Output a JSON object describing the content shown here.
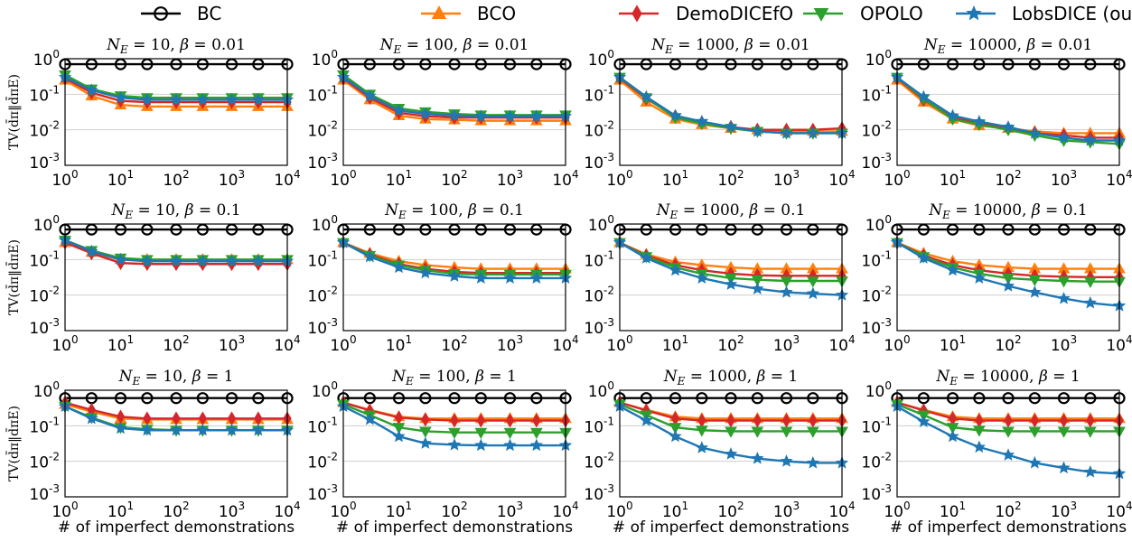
{
  "legend": {
    "position": "top-center",
    "entries": [
      {
        "name": "BC",
        "color": "#000000",
        "marker": "circle"
      },
      {
        "name": "BCO",
        "color": "#ff7f0e",
        "marker": "triangle-up"
      },
      {
        "name": "DemoDICEfO",
        "color": "#d62728",
        "marker": "diamond"
      },
      {
        "name": "OPOLO",
        "color": "#2ca02c",
        "marker": "triangle-down"
      },
      {
        "name": "LobsDICE (ours)",
        "color": "#1f77b4",
        "marker": "star"
      }
    ]
  },
  "axis": {
    "xlabel": "# of imperfect demonstrations",
    "ylabel": "TV(d̄π‖d̄πE)",
    "scale": "log",
    "x_ticks": [
      "10^0",
      "10^1",
      "10^2",
      "10^3",
      "10^4"
    ],
    "y_ticks": [
      "10^0",
      "10^-1",
      "10^-2",
      "10^-3"
    ],
    "xlim": [
      1,
      10000
    ],
    "ylim": [
      0.001,
      1
    ],
    "grid": "horizontal"
  },
  "chart_data": [
    {
      "type": "line",
      "title": "N_E = 10, β = 0.01",
      "x": [
        1,
        3,
        10,
        30,
        100,
        300,
        1000,
        3000,
        10000
      ],
      "series": [
        {
          "name": "BC",
          "values": [
            0.7,
            0.7,
            0.7,
            0.7,
            0.7,
            0.7,
            0.7,
            0.7,
            0.7
          ]
        },
        {
          "name": "BCO",
          "values": [
            0.25,
            0.09,
            0.05,
            0.045,
            0.045,
            0.045,
            0.045,
            0.045,
            0.045
          ]
        },
        {
          "name": "DemoDICEfO",
          "values": [
            0.28,
            0.11,
            0.065,
            0.06,
            0.06,
            0.06,
            0.06,
            0.06,
            0.06
          ]
        },
        {
          "name": "OPOLO",
          "values": [
            0.35,
            0.14,
            0.09,
            0.08,
            0.08,
            0.08,
            0.08,
            0.08,
            0.08
          ]
        },
        {
          "name": "LobsDICE (ours)",
          "values": [
            0.3,
            0.13,
            0.08,
            0.07,
            0.07,
            0.07,
            0.07,
            0.07,
            0.07
          ]
        }
      ]
    },
    {
      "type": "line",
      "title": "N_E = 100, β = 0.01",
      "x": [
        1,
        3,
        10,
        30,
        100,
        300,
        1000,
        3000,
        10000
      ],
      "series": [
        {
          "name": "BC",
          "values": [
            0.7,
            0.7,
            0.7,
            0.7,
            0.7,
            0.7,
            0.7,
            0.7,
            0.7
          ]
        },
        {
          "name": "BCO",
          "values": [
            0.25,
            0.07,
            0.025,
            0.02,
            0.019,
            0.018,
            0.018,
            0.018,
            0.018
          ]
        },
        {
          "name": "DemoDICEfO",
          "values": [
            0.28,
            0.08,
            0.03,
            0.024,
            0.022,
            0.022,
            0.022,
            0.022,
            0.022
          ]
        },
        {
          "name": "OPOLO",
          "values": [
            0.35,
            0.1,
            0.04,
            0.032,
            0.028,
            0.026,
            0.026,
            0.026,
            0.026
          ]
        },
        {
          "name": "LobsDICE (ours)",
          "values": [
            0.3,
            0.09,
            0.035,
            0.028,
            0.025,
            0.024,
            0.024,
            0.024,
            0.024
          ]
        }
      ]
    },
    {
      "type": "line",
      "title": "N_E = 1000, β = 0.01",
      "x": [
        1,
        3,
        10,
        30,
        100,
        300,
        1000,
        3000,
        10000
      ],
      "series": [
        {
          "name": "BC",
          "values": [
            0.7,
            0.7,
            0.7,
            0.7,
            0.7,
            0.7,
            0.7,
            0.7,
            0.7
          ]
        },
        {
          "name": "BCO",
          "values": [
            0.25,
            0.06,
            0.02,
            0.014,
            0.011,
            0.01,
            0.009,
            0.009,
            0.009
          ]
        },
        {
          "name": "DemoDICEfO",
          "values": [
            0.28,
            0.075,
            0.024,
            0.016,
            0.012,
            0.01,
            0.01,
            0.01,
            0.011
          ]
        },
        {
          "name": "OPOLO",
          "values": [
            0.3,
            0.08,
            0.022,
            0.015,
            0.011,
            0.009,
            0.008,
            0.008,
            0.008
          ]
        },
        {
          "name": "LobsDICE (ours)",
          "values": [
            0.3,
            0.085,
            0.025,
            0.017,
            0.012,
            0.009,
            0.008,
            0.008,
            0.008
          ]
        }
      ]
    },
    {
      "type": "line",
      "title": "N_E = 10000, β = 0.01",
      "x": [
        1,
        3,
        10,
        30,
        100,
        300,
        1000,
        3000,
        10000
      ],
      "series": [
        {
          "name": "BC",
          "values": [
            0.7,
            0.7,
            0.7,
            0.7,
            0.7,
            0.7,
            0.7,
            0.7,
            0.7
          ]
        },
        {
          "name": "BCO",
          "values": [
            0.25,
            0.06,
            0.02,
            0.013,
            0.011,
            0.009,
            0.008,
            0.008,
            0.008
          ]
        },
        {
          "name": "DemoDICEfO",
          "values": [
            0.28,
            0.07,
            0.022,
            0.015,
            0.011,
            0.008,
            0.007,
            0.006,
            0.006
          ]
        },
        {
          "name": "OPOLO",
          "values": [
            0.3,
            0.075,
            0.02,
            0.014,
            0.01,
            0.007,
            0.005,
            0.0045,
            0.004
          ]
        },
        {
          "name": "LobsDICE (ours)",
          "values": [
            0.3,
            0.085,
            0.025,
            0.017,
            0.012,
            0.008,
            0.006,
            0.005,
            0.005
          ]
        }
      ]
    },
    {
      "type": "line",
      "title": "N_E = 10, β = 0.1",
      "x": [
        1,
        3,
        10,
        30,
        100,
        300,
        1000,
        3000,
        10000
      ],
      "series": [
        {
          "name": "BC",
          "values": [
            0.7,
            0.7,
            0.7,
            0.7,
            0.7,
            0.7,
            0.7,
            0.7,
            0.7
          ]
        },
        {
          "name": "BCO",
          "values": [
            0.3,
            0.16,
            0.1,
            0.1,
            0.1,
            0.1,
            0.1,
            0.1,
            0.1
          ]
        },
        {
          "name": "DemoDICEfO",
          "values": [
            0.3,
            0.15,
            0.08,
            0.075,
            0.075,
            0.075,
            0.075,
            0.075,
            0.075
          ]
        },
        {
          "name": "OPOLO",
          "values": [
            0.35,
            0.18,
            0.11,
            0.1,
            0.1,
            0.1,
            0.1,
            0.1,
            0.1
          ]
        },
        {
          "name": "LobsDICE (ours)",
          "values": [
            0.35,
            0.17,
            0.1,
            0.09,
            0.09,
            0.09,
            0.09,
            0.09,
            0.09
          ]
        }
      ]
    },
    {
      "type": "line",
      "title": "N_E = 100, β = 0.1",
      "x": [
        1,
        3,
        10,
        30,
        100,
        300,
        1000,
        3000,
        10000
      ],
      "series": [
        {
          "name": "BC",
          "values": [
            0.7,
            0.7,
            0.7,
            0.7,
            0.7,
            0.7,
            0.7,
            0.7,
            0.7
          ]
        },
        {
          "name": "BCO",
          "values": [
            0.3,
            0.15,
            0.09,
            0.07,
            0.06,
            0.055,
            0.055,
            0.055,
            0.055
          ]
        },
        {
          "name": "DemoDICEfO",
          "values": [
            0.3,
            0.14,
            0.075,
            0.055,
            0.045,
            0.042,
            0.042,
            0.042,
            0.042
          ]
        },
        {
          "name": "OPOLO",
          "values": [
            0.3,
            0.13,
            0.07,
            0.05,
            0.04,
            0.038,
            0.038,
            0.038,
            0.038
          ]
        },
        {
          "name": "LobsDICE (ours)",
          "values": [
            0.3,
            0.12,
            0.06,
            0.042,
            0.034,
            0.03,
            0.03,
            0.03,
            0.03
          ]
        }
      ]
    },
    {
      "type": "line",
      "title": "N_E = 1000, β = 0.1",
      "x": [
        1,
        3,
        10,
        30,
        100,
        300,
        1000,
        3000,
        10000
      ],
      "series": [
        {
          "name": "BC",
          "values": [
            0.7,
            0.7,
            0.7,
            0.7,
            0.7,
            0.7,
            0.7,
            0.7,
            0.7
          ]
        },
        {
          "name": "BCO",
          "values": [
            0.3,
            0.14,
            0.085,
            0.07,
            0.06,
            0.055,
            0.055,
            0.055,
            0.055
          ]
        },
        {
          "name": "DemoDICEfO",
          "values": [
            0.3,
            0.13,
            0.07,
            0.05,
            0.04,
            0.036,
            0.035,
            0.035,
            0.035
          ]
        },
        {
          "name": "OPOLO",
          "values": [
            0.3,
            0.12,
            0.06,
            0.04,
            0.03,
            0.027,
            0.025,
            0.025,
            0.025
          ]
        },
        {
          "name": "LobsDICE (ours)",
          "values": [
            0.3,
            0.11,
            0.05,
            0.03,
            0.02,
            0.015,
            0.012,
            0.011,
            0.01
          ]
        }
      ]
    },
    {
      "type": "line",
      "title": "N_E = 10000, β = 0.1",
      "x": [
        1,
        3,
        10,
        30,
        100,
        300,
        1000,
        3000,
        10000
      ],
      "series": [
        {
          "name": "BC",
          "values": [
            0.7,
            0.7,
            0.7,
            0.7,
            0.7,
            0.7,
            0.7,
            0.7,
            0.7
          ]
        },
        {
          "name": "BCO",
          "values": [
            0.3,
            0.15,
            0.09,
            0.07,
            0.06,
            0.055,
            0.055,
            0.055,
            0.055
          ]
        },
        {
          "name": "DemoDICEfO",
          "values": [
            0.3,
            0.13,
            0.07,
            0.05,
            0.04,
            0.035,
            0.033,
            0.032,
            0.032
          ]
        },
        {
          "name": "OPOLO",
          "values": [
            0.3,
            0.12,
            0.06,
            0.04,
            0.03,
            0.027,
            0.025,
            0.024,
            0.024
          ]
        },
        {
          "name": "LobsDICE (ours)",
          "values": [
            0.3,
            0.11,
            0.05,
            0.03,
            0.018,
            0.012,
            0.008,
            0.006,
            0.005
          ]
        }
      ]
    },
    {
      "type": "line",
      "title": "N_E = 10, β = 1",
      "x": [
        1,
        3,
        10,
        30,
        100,
        300,
        1000,
        3000,
        10000
      ],
      "series": [
        {
          "name": "BC",
          "values": [
            0.6,
            0.6,
            0.6,
            0.6,
            0.6,
            0.6,
            0.6,
            0.6,
            0.6
          ]
        },
        {
          "name": "BCO",
          "values": [
            0.4,
            0.25,
            0.16,
            0.15,
            0.15,
            0.15,
            0.15,
            0.15,
            0.15
          ]
        },
        {
          "name": "DemoDICEfO",
          "values": [
            0.45,
            0.28,
            0.18,
            0.16,
            0.16,
            0.16,
            0.16,
            0.16,
            0.16
          ]
        },
        {
          "name": "OPOLO",
          "values": [
            0.35,
            0.17,
            0.09,
            0.08,
            0.075,
            0.075,
            0.075,
            0.075,
            0.075
          ]
        },
        {
          "name": "LobsDICE (ours)",
          "values": [
            0.35,
            0.16,
            0.085,
            0.075,
            0.075,
            0.075,
            0.075,
            0.075,
            0.075
          ]
        }
      ]
    },
    {
      "type": "line",
      "title": "N_E = 100, β = 1",
      "x": [
        1,
        3,
        10,
        30,
        100,
        300,
        1000,
        3000,
        10000
      ],
      "series": [
        {
          "name": "BC",
          "values": [
            0.6,
            0.6,
            0.6,
            0.6,
            0.6,
            0.6,
            0.6,
            0.6,
            0.6
          ]
        },
        {
          "name": "BCO",
          "values": [
            0.45,
            0.28,
            0.18,
            0.16,
            0.16,
            0.16,
            0.16,
            0.16,
            0.16
          ]
        },
        {
          "name": "DemoDICEfO",
          "values": [
            0.45,
            0.27,
            0.17,
            0.15,
            0.14,
            0.14,
            0.14,
            0.14,
            0.14
          ]
        },
        {
          "name": "OPOLO",
          "values": [
            0.4,
            0.2,
            0.09,
            0.07,
            0.065,
            0.065,
            0.065,
            0.065,
            0.065
          ]
        },
        {
          "name": "LobsDICE (ours)",
          "values": [
            0.35,
            0.15,
            0.05,
            0.032,
            0.029,
            0.028,
            0.028,
            0.028,
            0.028
          ]
        }
      ]
    },
    {
      "type": "line",
      "title": "N_E = 1000, β = 1",
      "x": [
        1,
        3,
        10,
        30,
        100,
        300,
        1000,
        3000,
        10000
      ],
      "series": [
        {
          "name": "BC",
          "values": [
            0.6,
            0.6,
            0.6,
            0.6,
            0.6,
            0.6,
            0.6,
            0.6,
            0.6
          ]
        },
        {
          "name": "BCO",
          "values": [
            0.45,
            0.28,
            0.18,
            0.16,
            0.16,
            0.16,
            0.16,
            0.16,
            0.16
          ]
        },
        {
          "name": "DemoDICEfO",
          "values": [
            0.45,
            0.27,
            0.16,
            0.14,
            0.14,
            0.14,
            0.14,
            0.14,
            0.14
          ]
        },
        {
          "name": "OPOLO",
          "values": [
            0.4,
            0.2,
            0.09,
            0.075,
            0.07,
            0.07,
            0.07,
            0.07,
            0.07
          ]
        },
        {
          "name": "LobsDICE (ours)",
          "values": [
            0.35,
            0.14,
            0.05,
            0.024,
            0.016,
            0.012,
            0.01,
            0.009,
            0.009
          ]
        }
      ]
    },
    {
      "type": "line",
      "title": "N_E = 10000, β = 1",
      "x": [
        1,
        3,
        10,
        30,
        100,
        300,
        1000,
        3000,
        10000
      ],
      "series": [
        {
          "name": "BC",
          "values": [
            0.6,
            0.6,
            0.6,
            0.6,
            0.6,
            0.6,
            0.6,
            0.6,
            0.6
          ]
        },
        {
          "name": "BCO",
          "values": [
            0.45,
            0.28,
            0.18,
            0.16,
            0.16,
            0.16,
            0.16,
            0.16,
            0.16
          ]
        },
        {
          "name": "DemoDICEfO",
          "values": [
            0.45,
            0.27,
            0.16,
            0.14,
            0.14,
            0.14,
            0.14,
            0.14,
            0.14
          ]
        },
        {
          "name": "OPOLO",
          "values": [
            0.4,
            0.2,
            0.09,
            0.075,
            0.07,
            0.07,
            0.07,
            0.07,
            0.07
          ]
        },
        {
          "name": "LobsDICE (ours)",
          "values": [
            0.35,
            0.13,
            0.05,
            0.025,
            0.015,
            0.009,
            0.0065,
            0.005,
            0.0045
          ]
        }
      ]
    }
  ]
}
